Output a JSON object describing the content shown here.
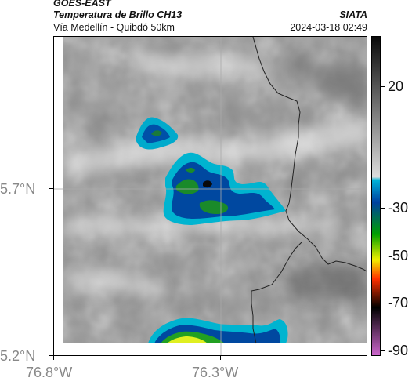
{
  "header": {
    "satellite": "GOES-EAST",
    "product": "Temperatura de Brillo CH13",
    "region": "Vía Medellín - Quibdó 50km",
    "source": "SIATA",
    "timestamp": "2024-03-18 02:49"
  },
  "axes": {
    "lat_labels": [
      "5.7°N",
      "5.2°N"
    ],
    "lon_labels": [
      "76.8°W",
      "76.3°W"
    ]
  },
  "colorbar": {
    "ticks": [
      "20",
      "-30",
      "-50",
      "-70",
      "-90"
    ],
    "stops": [
      "#0a0a0a",
      "#dcdcdc",
      "#00b4d8",
      "#0040a0",
      "#00a000",
      "#f0f000",
      "#ff3000",
      "#000000",
      "#cc66cc"
    ]
  }
}
